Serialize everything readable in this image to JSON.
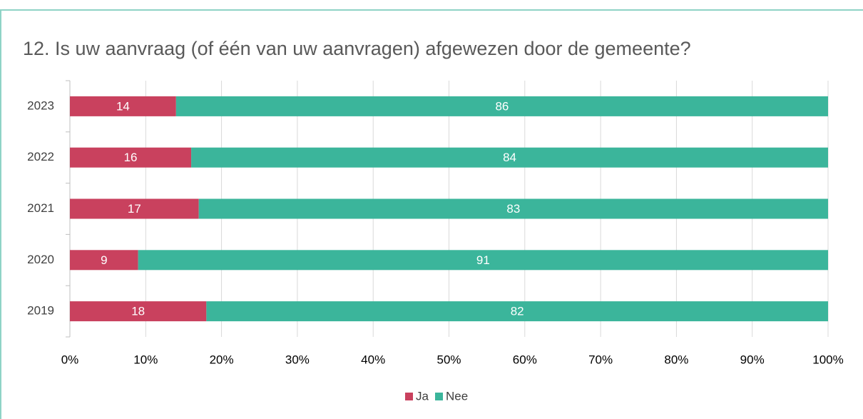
{
  "chart_data": {
    "type": "stacked-barh",
    "title": "12. Is uw aanvraag (of één van uw aanvragen) afgewezen door de gemeente?",
    "categories": [
      "2023",
      "2022",
      "2021",
      "2020",
      "2019"
    ],
    "series": [
      {
        "name": "Ja",
        "color": "#c9415e",
        "values": [
          14,
          16,
          17,
          9,
          18
        ]
      },
      {
        "name": "Nee",
        "color": "#3bb59b",
        "values": [
          86,
          84,
          83,
          91,
          82
        ]
      }
    ],
    "xlim": [
      0,
      100
    ],
    "xticks": [
      {
        "value": 0,
        "label": "0%"
      },
      {
        "value": 10,
        "label": "10%"
      },
      {
        "value": 20,
        "label": "20%"
      },
      {
        "value": 30,
        "label": "30%"
      },
      {
        "value": 40,
        "label": "40%"
      },
      {
        "value": 50,
        "label": "50%"
      },
      {
        "value": 60,
        "label": "60%"
      },
      {
        "value": 70,
        "label": "70%"
      },
      {
        "value": 80,
        "label": "80%"
      },
      {
        "value": 90,
        "label": "90%"
      },
      {
        "value": 100,
        "label": "100%"
      }
    ],
    "grid": true,
    "legend": "bottom"
  }
}
